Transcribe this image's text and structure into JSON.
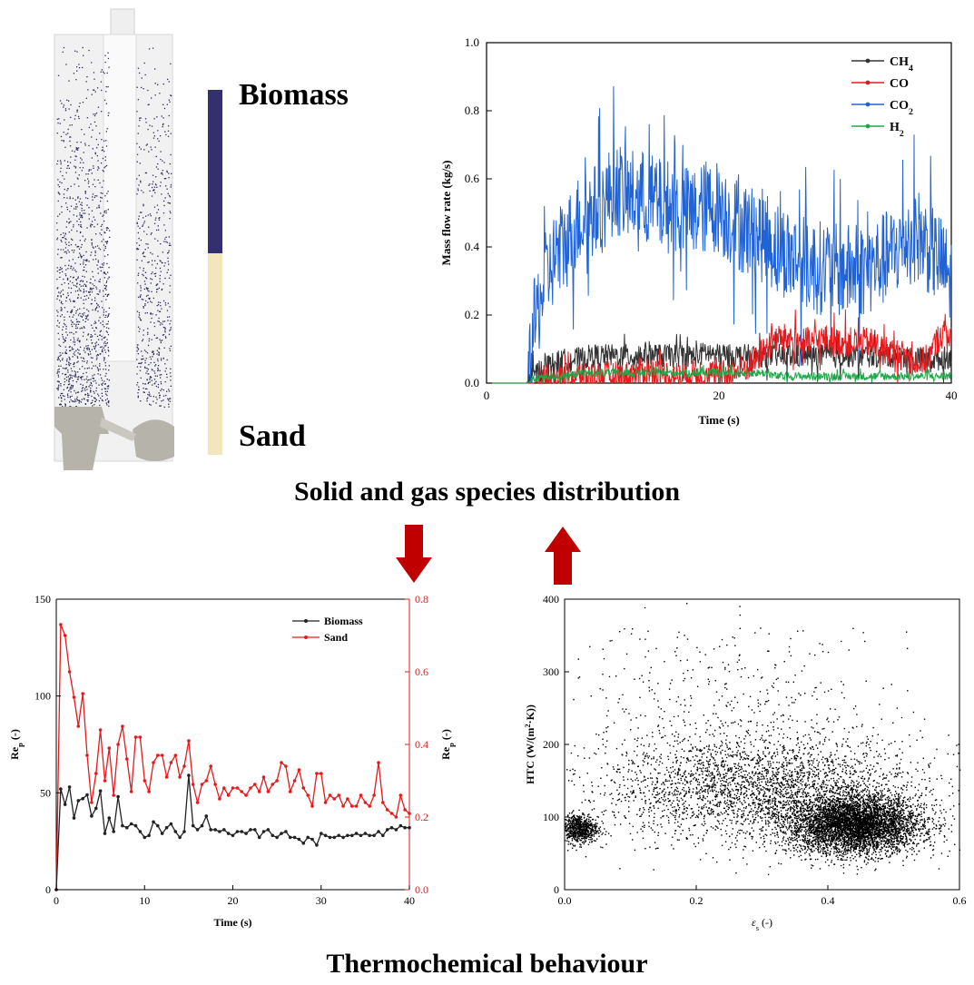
{
  "colors": {
    "biomass": "#34306e",
    "sand": "#f2e6bd",
    "reactor_particle": "#2b2a5c",
    "reactor_sand": "#b5b3aa",
    "arrow_red": "#c00000",
    "ch4": "#333333",
    "co": "#e8191c",
    "co2": "#1f63d6",
    "h2": "#1ea84a",
    "sand_line": "#e8191c",
    "biomass_line": "#222222"
  },
  "icons": {
    "down_arrow": "down-arrow-icon",
    "up_arrow": "up-arrow-icon"
  },
  "colorbar": {
    "top_label": "Biomass",
    "bottom_label": "Sand"
  },
  "headings": {
    "middle": "Solid and gas species distribution",
    "bottom": "Thermochemical behaviour"
  },
  "chart_data": [
    {
      "type": "line",
      "xlabel": "Time (s)",
      "ylabel": "Mass flow rate (kg/s)",
      "xlim": [
        0,
        40
      ],
      "ylim": [
        0,
        1.0
      ],
      "xticks": [
        "0",
        "20",
        "40"
      ],
      "yticks": [
        "0.0",
        "0.2",
        "0.4",
        "0.6",
        "0.8",
        "1.0"
      ],
      "legend_position": "top-right",
      "grid": false,
      "x": [
        0,
        2,
        3.5,
        4,
        5,
        6,
        7,
        8,
        9,
        10,
        11,
        12,
        13,
        14,
        15,
        16,
        17,
        18,
        19,
        20,
        21,
        22,
        23,
        24,
        25,
        26,
        27,
        28,
        29,
        30,
        31,
        32,
        33,
        34,
        35,
        36,
        37,
        38,
        39,
        40
      ],
      "series": [
        {
          "name": "CH",
          "sub": "4",
          "values": [
            0,
            0,
            0,
            0.02,
            0.05,
            0.06,
            0.07,
            0.07,
            0.08,
            0.08,
            0.08,
            0.08,
            0.08,
            0.09,
            0.08,
            0.08,
            0.08,
            0.08,
            0.09,
            0.08,
            0.08,
            0.08,
            0.08,
            0.08,
            0.08,
            0.08,
            0.08,
            0.08,
            0.08,
            0.08,
            0.08,
            0.08,
            0.08,
            0.08,
            0.08,
            0.08,
            0.07,
            0.07,
            0.07,
            0.08
          ]
        },
        {
          "name": "CO",
          "sub": "",
          "values": [
            0,
            0,
            0,
            0,
            0.01,
            0.01,
            0.01,
            0.02,
            0.02,
            0.02,
            0.02,
            0.02,
            0.03,
            0.04,
            0.03,
            0.02,
            0.02,
            0.03,
            0.03,
            0.02,
            0.03,
            0.04,
            0.06,
            0.1,
            0.13,
            0.13,
            0.12,
            0.12,
            0.13,
            0.12,
            0.12,
            0.12,
            0.12,
            0.1,
            0.09,
            0.08,
            0.06,
            0.07,
            0.14,
            0.15
          ]
        },
        {
          "name": "CO",
          "sub": "2",
          "values": [
            0,
            0,
            0,
            0.15,
            0.3,
            0.38,
            0.42,
            0.48,
            0.5,
            0.52,
            0.58,
            0.55,
            0.55,
            0.54,
            0.52,
            0.52,
            0.5,
            0.5,
            0.52,
            0.52,
            0.48,
            0.46,
            0.44,
            0.43,
            0.4,
            0.38,
            0.36,
            0.34,
            0.34,
            0.33,
            0.33,
            0.33,
            0.34,
            0.36,
            0.38,
            0.42,
            0.44,
            0.4,
            0.36,
            0.3
          ]
        },
        {
          "name": "H",
          "sub": "2",
          "values": [
            0,
            0,
            0,
            0.01,
            0.02,
            0.02,
            0.02,
            0.03,
            0.03,
            0.03,
            0.03,
            0.03,
            0.03,
            0.03,
            0.03,
            0.03,
            0.03,
            0.03,
            0.03,
            0.03,
            0.03,
            0.03,
            0.03,
            0.03,
            0.02,
            0.02,
            0.02,
            0.02,
            0.02,
            0.02,
            0.02,
            0.02,
            0.02,
            0.02,
            0.02,
            0.02,
            0.02,
            0.02,
            0.02,
            0.02
          ]
        }
      ]
    },
    {
      "type": "line",
      "xlabel": "Time (s)",
      "ylabel": "Re",
      "ylabel_sub": "p",
      "ylabel_suffix": " (-)",
      "y2label": "Re",
      "y2label_sub": "p",
      "y2label_suffix": " (-)",
      "xlim": [
        0,
        40
      ],
      "ylim": [
        0,
        150
      ],
      "y2lim": [
        0,
        0.8
      ],
      "xticks": [
        "0",
        "10",
        "20",
        "30",
        "40"
      ],
      "yticks": [
        "0",
        "50",
        "100",
        "150"
      ],
      "y2ticks": [
        "0.0",
        "0.2",
        "0.4",
        "0.6",
        "0.8"
      ],
      "legend_position": "top-right",
      "grid": false,
      "x": [
        0,
        0.5,
        1,
        1.5,
        2,
        2.5,
        3,
        3.5,
        4,
        4.5,
        5,
        5.5,
        6,
        6.5,
        7,
        7.5,
        8,
        8.5,
        9,
        9.5,
        10,
        10.5,
        11,
        11.5,
        12,
        12.5,
        13,
        13.5,
        14,
        14.5,
        15,
        15.5,
        16,
        16.5,
        17,
        17.5,
        18,
        18.5,
        19,
        19.5,
        20,
        20.5,
        21,
        21.5,
        22,
        22.5,
        23,
        23.5,
        24,
        24.5,
        25,
        25.5,
        26,
        26.5,
        27,
        27.5,
        28,
        28.5,
        29,
        29.5,
        30,
        30.5,
        31,
        31.5,
        32,
        32.5,
        33,
        33.5,
        34,
        34.5,
        35,
        35.5,
        36,
        36.5,
        37,
        37.5,
        38,
        38.5,
        39,
        39.5,
        40
      ],
      "series": [
        {
          "name": "Biomass",
          "axis": "left",
          "values": [
            0,
            52,
            44,
            53,
            37,
            46,
            47,
            49,
            38,
            42,
            51,
            29,
            37,
            30,
            48,
            33,
            32,
            34,
            33,
            30,
            27,
            28,
            35,
            33,
            29,
            32,
            34,
            30,
            27,
            30,
            59,
            33,
            31,
            33,
            38,
            31,
            31,
            30,
            31,
            29,
            28,
            30,
            30,
            29,
            31,
            31,
            27,
            30,
            31,
            28,
            27,
            29,
            30,
            27,
            27,
            26,
            24,
            27,
            26,
            23,
            29,
            28,
            27,
            27,
            28,
            27,
            28,
            28,
            29,
            28,
            29,
            28,
            28,
            30,
            28,
            31,
            32,
            31,
            33,
            32,
            32
          ]
        },
        {
          "name": "Sand",
          "axis": "right",
          "values": [
            0,
            0.73,
            0.7,
            0.6,
            0.53,
            0.45,
            0.54,
            0.37,
            0.24,
            0.32,
            0.44,
            0.3,
            0.39,
            0.26,
            0.4,
            0.45,
            0.36,
            0.27,
            0.42,
            0.42,
            0.3,
            0.27,
            0.35,
            0.37,
            0.37,
            0.31,
            0.35,
            0.37,
            0.31,
            0.34,
            0.41,
            0.29,
            0.24,
            0.29,
            0.3,
            0.34,
            0.29,
            0.25,
            0.28,
            0.26,
            0.28,
            0.28,
            0.27,
            0.26,
            0.28,
            0.29,
            0.27,
            0.31,
            0.27,
            0.29,
            0.3,
            0.35,
            0.34,
            0.27,
            0.3,
            0.33,
            0.28,
            0.26,
            0.23,
            0.32,
            0.32,
            0.24,
            0.26,
            0.25,
            0.26,
            0.23,
            0.25,
            0.23,
            0.23,
            0.26,
            0.24,
            0.23,
            0.26,
            0.35,
            0.24,
            0.22,
            0.21,
            0.2,
            0.26,
            0.22,
            0.21
          ]
        }
      ]
    },
    {
      "type": "scatter",
      "xlabel": "ε",
      "xlabel_sub": "s",
      "xlabel_suffix": " (-)",
      "ylabel": "HTC (W/(m",
      "ylabel_sup": "2",
      "ylabel_suffix": "·K))",
      "xlim": [
        0,
        0.6
      ],
      "ylim": [
        0,
        400
      ],
      "xticks": [
        "0.0",
        "0.2",
        "0.4",
        "0.6"
      ],
      "yticks": [
        "0",
        "100",
        "200",
        "300",
        "400"
      ],
      "grid": false,
      "clusters": [
        {
          "x": 0.02,
          "y": 85,
          "sx": 0.015,
          "sy": 10,
          "weight": 0.08
        },
        {
          "x": 0.44,
          "y": 90,
          "sx": 0.05,
          "sy": 20,
          "weight": 0.55
        },
        {
          "x": 0.3,
          "y": 140,
          "sx": 0.12,
          "sy": 35,
          "weight": 0.3
        },
        {
          "x": 0.25,
          "y": 220,
          "sx": 0.14,
          "sy": 80,
          "weight": 0.07
        }
      ]
    }
  ]
}
